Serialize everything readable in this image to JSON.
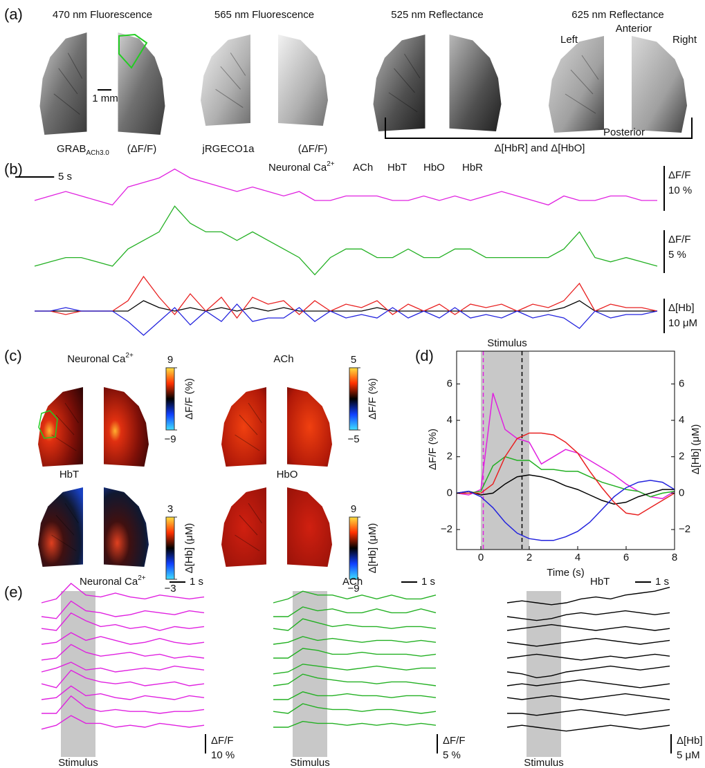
{
  "figure": {
    "panel_labels": [
      "(a)",
      "(b)",
      "(c)",
      "(d)",
      "(e)"
    ],
    "a": {
      "titles": [
        "470 nm Fluorescence",
        "565 nm Fluorescence",
        "525 nm Reflectance",
        "625 nm Reflectance"
      ],
      "scale_bar": "1 mm",
      "orientation": {
        "left": "Left",
        "anterior": "Anterior",
        "right": "Right",
        "posterior": "Posterior"
      },
      "labels": {
        "grab": "GRAB",
        "grab_sub": "ACh3.0",
        "dff_1": "(ΔF/F)",
        "jrgeco": "jRGECO1a",
        "dff_2": "(ΔF/F)",
        "hb": "Δ[HbR] and Δ[HbO]"
      }
    },
    "b": {
      "time_scale": {
        "label": "5 s",
        "value": 5
      },
      "x": [
        0,
        2,
        4,
        6,
        8,
        10,
        12,
        14,
        16,
        18,
        20,
        22,
        24,
        26,
        28,
        30,
        32,
        34,
        36,
        38,
        40,
        42,
        44,
        46,
        48,
        50,
        52,
        54,
        56,
        58,
        60,
        62,
        64,
        66,
        68,
        70,
        72,
        74,
        76,
        78,
        80
      ],
      "series": [
        {
          "name": "Neuronal Ca",
          "superscript": "2+",
          "color": "#e020e0",
          "values": [
            0,
            1,
            2,
            1,
            0,
            -1,
            3,
            4,
            5,
            7,
            5,
            4,
            3,
            2,
            3,
            2,
            1,
            2,
            0,
            0,
            1,
            1,
            1,
            0,
            0,
            1,
            0,
            1,
            0,
            1,
            2,
            1,
            0,
            -1,
            1,
            0,
            0,
            1,
            1,
            0,
            0
          ]
        },
        {
          "name": "ACh",
          "color": "#22b022",
          "values": [
            0,
            0.5,
            1,
            1,
            0.5,
            0,
            2,
            3,
            4,
            7,
            5,
            4,
            4,
            3,
            4,
            3,
            2,
            1,
            -1,
            1,
            2,
            2,
            1,
            1,
            2,
            1,
            1,
            2,
            2,
            1,
            1,
            1,
            1,
            1,
            2,
            4,
            1,
            0.5,
            1,
            0.5,
            0
          ]
        },
        {
          "name": "HbT",
          "color": "#000000",
          "values": [
            0,
            0,
            0,
            0,
            0,
            0,
            0,
            3,
            1,
            0,
            1,
            0,
            1,
            0,
            1,
            0,
            1,
            0,
            0,
            0,
            0,
            0,
            1,
            0,
            0,
            0,
            0,
            0,
            0,
            0,
            0,
            0,
            0,
            0,
            1,
            3,
            0,
            0,
            0,
            0,
            0
          ]
        },
        {
          "name": "HbO",
          "color": "#e82020",
          "values": [
            0,
            0,
            -1,
            0,
            0,
            0,
            3,
            10,
            4,
            -1,
            5,
            0,
            4,
            -2,
            4,
            2,
            3,
            -1,
            3,
            0,
            2,
            1,
            3,
            -1,
            2,
            0,
            2,
            -1,
            2,
            1,
            2,
            0,
            2,
            1,
            3,
            8,
            0,
            2,
            1,
            1,
            0
          ]
        },
        {
          "name": "HbR",
          "color": "#2222dd",
          "values": [
            0,
            0,
            1,
            0,
            0,
            0,
            -3,
            -7,
            -3,
            1,
            -4,
            0,
            -3,
            2,
            -3,
            -2,
            -2,
            1,
            -3,
            0,
            -2,
            -1,
            -2,
            1,
            -2,
            0,
            -2,
            1,
            -2,
            -1,
            -2,
            0,
            -2,
            -1,
            -2,
            -5,
            0,
            -2,
            -1,
            -1,
            0
          ]
        }
      ],
      "scale_bars": [
        {
          "label": "ΔF/F",
          "size_label": "10 %",
          "value": 10
        },
        {
          "label": "ΔF/F",
          "size_label": "5 %",
          "value": 5
        },
        {
          "label": "Δ[Hb]",
          "size_label": "10 μM",
          "value": 10
        }
      ]
    },
    "c": {
      "panels": [
        {
          "title": "Neuronal Ca",
          "superscript": "2+",
          "colorbar_ticks": [
            9,
            {
              "value": -9,
              "label": "−9"
            }
          ],
          "colorbar_label": "ΔF/F (%)"
        },
        {
          "title": "ACh",
          "colorbar_ticks": [
            5,
            {
              "value": -5,
              "label": "−5"
            }
          ],
          "colorbar_label": "ΔF/F (%)"
        },
        {
          "title": "HbT",
          "colorbar_ticks": [
            3,
            {
              "value": -3,
              "label": "−3"
            }
          ],
          "colorbar_label": "Δ[Hb] (μM)"
        },
        {
          "title": "HbO",
          "colorbar_ticks": [
            9,
            {
              "value": -9,
              "label": "−9"
            }
          ],
          "colorbar_label": "Δ[Hb] (μM)"
        }
      ]
    },
    "e": {
      "panels": [
        {
          "title": "Neuronal Ca",
          "superscript": "2+",
          "color": "#e020e0",
          "time_scale": {
            "label": "1 s",
            "value": 1
          },
          "scale": {
            "label": "ΔF/F",
            "size_label": "10 %",
            "value": 10
          },
          "stimulus": "Stimulus",
          "traces": [
            [
              0,
              2,
              10,
              4,
              3,
              5,
              3,
              2,
              4,
              3,
              2,
              3
            ],
            [
              0,
              -1,
              8,
              3,
              2,
              0,
              1,
              3,
              2,
              1,
              3,
              2
            ],
            [
              1,
              0,
              9,
              5,
              2,
              3,
              1,
              2,
              0,
              2,
              1,
              2
            ],
            [
              0,
              1,
              6,
              2,
              4,
              2,
              0,
              1,
              3,
              1,
              0,
              1
            ],
            [
              -1,
              0,
              7,
              3,
              1,
              2,
              3,
              1,
              2,
              0,
              1,
              0
            ],
            [
              0,
              2,
              5,
              1,
              2,
              0,
              1,
              2,
              1,
              3,
              2,
              1
            ],
            [
              1,
              -1,
              8,
              4,
              2,
              1,
              2,
              0,
              1,
              2,
              0,
              1
            ],
            [
              0,
              1,
              7,
              2,
              3,
              1,
              0,
              2,
              1,
              0,
              2,
              1
            ],
            [
              0,
              0,
              9,
              3,
              1,
              2,
              1,
              1,
              0,
              1,
              1,
              2
            ],
            [
              -1,
              1,
              6,
              2,
              2,
              0,
              1,
              0,
              2,
              1,
              0,
              1
            ]
          ]
        },
        {
          "title": "ACh",
          "color": "#22b022",
          "time_scale": {
            "label": "1 s",
            "value": 1
          },
          "scale": {
            "label": "ΔF/F",
            "size_label": "5 %",
            "value": 5
          },
          "stimulus": "Stimulus",
          "traces": [
            [
              0,
              1,
              3,
              2,
              2,
              1,
              2,
              1,
              2,
              1,
              1,
              2
            ],
            [
              0,
              0,
              2.5,
              1.5,
              2,
              1,
              1,
              2,
              1,
              1,
              2,
              1
            ],
            [
              0.5,
              0,
              3,
              2,
              1,
              1.5,
              1,
              1,
              0.5,
              1,
              1,
              0.5
            ],
            [
              0,
              0.5,
              2,
              1,
              1.5,
              1,
              0.5,
              1,
              1,
              0.5,
              1,
              0.5
            ],
            [
              0,
              0,
              2.5,
              2,
              1,
              1,
              1.5,
              1,
              1,
              1,
              0.5,
              1
            ],
            [
              -0.5,
              0,
              2,
              1.5,
              1,
              0.5,
              1,
              1.5,
              1,
              0.5,
              1,
              1
            ],
            [
              0,
              0.5,
              3,
              2,
              1.5,
              1,
              1,
              0.5,
              1,
              1,
              0.5,
              0
            ],
            [
              0,
              0,
              2,
              1,
              1,
              1.5,
              1,
              1,
              0.5,
              1,
              1,
              0.5
            ],
            [
              0.5,
              0,
              2.5,
              1.5,
              1,
              1,
              0.5,
              1,
              1,
              0.5,
              0,
              0.5
            ],
            [
              0,
              0,
              1.5,
              1,
              1,
              0.5,
              1,
              0.5,
              1,
              0.5,
              1,
              0.5
            ]
          ]
        },
        {
          "title": "HbT",
          "color": "#000000",
          "time_scale": {
            "label": "1 s",
            "value": 1
          },
          "scale": {
            "label": "Δ[Hb]",
            "size_label": "5 μM",
            "value": 5
          },
          "stimulus": "Stimulus",
          "traces": [
            [
              0,
              0.5,
              0,
              -0.5,
              0,
              1,
              1.5,
              1,
              2,
              2.5,
              3,
              4
            ],
            [
              0,
              -0.5,
              -1,
              -0.5,
              0.5,
              1,
              0.5,
              1,
              1.5,
              1,
              0.5,
              1
            ],
            [
              0,
              0.5,
              1,
              1.5,
              1,
              0.5,
              0,
              0.5,
              1,
              0.5,
              0,
              0.5
            ],
            [
              0.5,
              0,
              -0.5,
              0,
              0.5,
              1,
              1.5,
              1,
              0.5,
              0,
              0.5,
              1
            ],
            [
              0,
              0.5,
              1,
              0.5,
              0,
              -0.5,
              0,
              0.5,
              0,
              0.5,
              1,
              0.5
            ],
            [
              0,
              -0.5,
              -1.5,
              -1,
              0,
              0.5,
              1,
              1.5,
              1,
              0.5,
              1,
              1.5
            ],
            [
              0,
              0.5,
              0,
              0.5,
              1,
              1.5,
              1,
              0.5,
              0,
              -0.5,
              0,
              0.5
            ],
            [
              0.5,
              0,
              0.5,
              1,
              0.5,
              0,
              0.5,
              1,
              1.5,
              1,
              0.5,
              0
            ],
            [
              0,
              0,
              -0.5,
              0,
              0.5,
              1,
              0.5,
              0,
              -0.5,
              0,
              0.5,
              1
            ],
            [
              0,
              0.5,
              0,
              -0.5,
              -1,
              -0.5,
              0,
              0.5,
              0,
              -0.5,
              0,
              0.5
            ]
          ]
        }
      ]
    }
  },
  "chart_data": {
    "type": "line",
    "title": "Stimulus",
    "x_label": "Time (s)",
    "y_label": "ΔF/F (%)",
    "y2_label": "Δ[Hb] (μM)",
    "x": [
      -1,
      -0.5,
      0,
      0.5,
      1,
      1.5,
      2,
      2.5,
      3,
      3.5,
      4,
      4.5,
      5,
      5.5,
      6,
      6.5,
      7,
      7.5,
      8
    ],
    "xlim": [
      -1,
      8
    ],
    "xticks": [
      0,
      2,
      4,
      6,
      8
    ],
    "ylim": [
      -3.1,
      7.8
    ],
    "yticks": [
      {
        "value": -2,
        "label": "−2"
      },
      0,
      2,
      4,
      6
    ],
    "y2lim": [
      -3.1,
      7.8
    ],
    "y2ticks": [
      {
        "value": -2,
        "label": "−2"
      },
      0,
      2,
      4,
      6
    ],
    "stimulus_window": [
      0,
      2
    ],
    "stimulus_markers": [
      {
        "x": 0.1,
        "color": "#e020e0"
      },
      {
        "x": 1.7,
        "color": "#000000"
      }
    ],
    "series": [
      {
        "color": "#e020e0",
        "values": [
          0,
          -0.1,
          0.2,
          5.5,
          3.5,
          3,
          2.8,
          1.6,
          2,
          2.4,
          2.2,
          1.8,
          1.4,
          1,
          0.5,
          0.1,
          -0.2,
          -0.3,
          0.1
        ]
      },
      {
        "color": "#22b022",
        "values": [
          0,
          0,
          0.1,
          1.5,
          2,
          1.8,
          1.8,
          1.3,
          1.3,
          1.2,
          1.2,
          0.9,
          0.6,
          0.4,
          0.2,
          0.1,
          -0.2,
          0,
          0.1
        ]
      },
      {
        "color": "#000000",
        "axis": "y2",
        "values": [
          0,
          0.1,
          -0.1,
          0,
          0.5,
          0.9,
          1,
          0.9,
          0.7,
          0.4,
          0.2,
          -0.1,
          -0.4,
          -0.6,
          -0.5,
          -0.2,
          0,
          0.2,
          0.2
        ]
      },
      {
        "color": "#e82020",
        "axis": "y2",
        "values": [
          0,
          0,
          0,
          0.5,
          2,
          3,
          3.3,
          3.3,
          3.2,
          2.8,
          2.2,
          1.2,
          0.3,
          -0.5,
          -1.1,
          -1.2,
          -0.8,
          -0.4,
          0
        ]
      },
      {
        "color": "#2222dd",
        "axis": "y2",
        "values": [
          0,
          0.1,
          -0.2,
          -0.8,
          -1.6,
          -2.2,
          -2.5,
          -2.6,
          -2.6,
          -2.4,
          -2.1,
          -1.6,
          -0.9,
          -0.2,
          0.3,
          0.6,
          0.7,
          0.6,
          0.2
        ]
      }
    ]
  }
}
